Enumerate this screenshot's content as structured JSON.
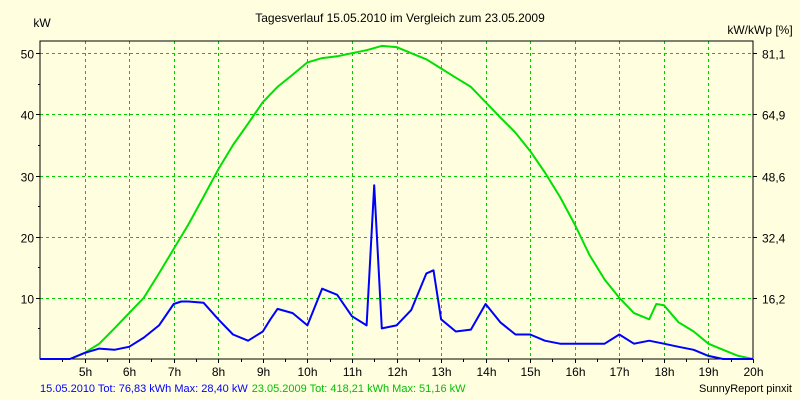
{
  "chart_data": {
    "type": "line",
    "title": "Tagesverlauf 15.05.2010 im Vergleich zum 23.05.2009",
    "ylabel_left": "kW",
    "ylabel_right": "kW/kWp [%]",
    "xlim": [
      4.0,
      20.0
    ],
    "ylim": [
      0,
      52
    ],
    "x_ticks": [
      5,
      6,
      7,
      8,
      9,
      10,
      11,
      12,
      13,
      14,
      15,
      16,
      17,
      18,
      19,
      20
    ],
    "x_tick_labels": [
      "5h",
      "6h",
      "7h",
      "8h",
      "9h",
      "10h",
      "11h",
      "12h",
      "13h",
      "14h",
      "15h",
      "16h",
      "17h",
      "18h",
      "19h",
      "20h"
    ],
    "y_ticks": [
      10,
      20,
      30,
      40,
      50
    ],
    "y_tick_labels": [
      "10",
      "20",
      "30",
      "40",
      "50"
    ],
    "y2_ticks": [
      {
        "value": 10.0,
        "label": "16,2"
      },
      {
        "value": 20.0,
        "label": "32,4"
      },
      {
        "value": 30.0,
        "label": "48,6"
      },
      {
        "value": 40.0,
        "label": "64,9"
      },
      {
        "value": 50.0,
        "label": "81,1"
      }
    ],
    "grid": true,
    "background": "#ffffe0",
    "series": [
      {
        "name": "23.05.2009",
        "color": "#00e000",
        "x": [
          4.0,
          4.67,
          5.0,
          5.33,
          5.67,
          6.0,
          6.33,
          6.67,
          7.0,
          7.33,
          7.67,
          8.0,
          8.33,
          8.67,
          9.0,
          9.33,
          9.67,
          10.0,
          10.33,
          10.67,
          11.0,
          11.33,
          11.67,
          12.0,
          12.33,
          12.67,
          13.0,
          13.33,
          13.67,
          14.0,
          14.33,
          14.67,
          15.0,
          15.33,
          15.67,
          16.0,
          16.33,
          16.67,
          17.0,
          17.33,
          17.67,
          17.83,
          18.0,
          18.33,
          18.67,
          19.0,
          19.33,
          19.67,
          20.0
        ],
        "values": [
          0,
          0,
          1.0,
          2.5,
          5.0,
          7.5,
          10.0,
          14.0,
          18.0,
          22.0,
          26.5,
          31.0,
          35.0,
          38.5,
          42.0,
          44.5,
          46.5,
          48.5,
          49.2,
          49.5,
          50.0,
          50.5,
          51.2,
          51.0,
          50.0,
          49.0,
          47.5,
          46.0,
          44.5,
          42.0,
          39.5,
          37.0,
          34.0,
          30.5,
          26.5,
          22.0,
          17.0,
          13.0,
          10.0,
          7.5,
          6.5,
          9.0,
          8.8,
          6.0,
          4.5,
          2.5,
          1.5,
          0.5,
          0
        ]
      },
      {
        "name": "15.05.2010",
        "color": "#0000ff",
        "x": [
          4.0,
          4.67,
          5.0,
          5.33,
          5.67,
          6.0,
          6.33,
          6.67,
          7.0,
          7.17,
          7.33,
          7.67,
          8.0,
          8.33,
          8.67,
          9.0,
          9.17,
          9.33,
          9.67,
          10.0,
          10.33,
          10.67,
          11.0,
          11.33,
          11.5,
          11.67,
          12.0,
          12.33,
          12.67,
          12.83,
          13.0,
          13.33,
          13.67,
          14.0,
          14.33,
          14.67,
          15.0,
          15.33,
          15.67,
          16.0,
          16.33,
          16.67,
          17.0,
          17.33,
          17.67,
          18.0,
          18.33,
          18.67,
          19.0,
          19.33,
          19.67,
          20.0
        ],
        "values": [
          0,
          0,
          1.0,
          1.7,
          1.5,
          2.0,
          3.5,
          5.5,
          9.0,
          9.4,
          9.4,
          9.2,
          6.5,
          4.0,
          3.0,
          4.5,
          6.5,
          8.2,
          7.5,
          5.5,
          11.5,
          10.5,
          7.0,
          5.5,
          28.4,
          5.0,
          5.5,
          8.0,
          14.0,
          14.5,
          6.5,
          4.5,
          4.8,
          9.0,
          6.0,
          4.0,
          4.0,
          3.0,
          2.5,
          2.5,
          2.5,
          2.5,
          4.0,
          2.5,
          3.0,
          2.5,
          2.0,
          1.5,
          0.5,
          0,
          0,
          0
        ]
      }
    ],
    "footer": {
      "series1_text": "15.05.2010 Tot: 76,83 kWh Max: 28,40 kW",
      "series2_text": "23.05.2009 Tot: 418,21 kWh Max: 51,16 kW",
      "brand": "SunnyReport pinxit"
    }
  }
}
